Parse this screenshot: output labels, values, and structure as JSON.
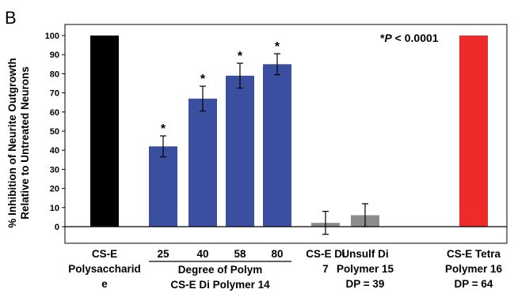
{
  "panel_label": "B",
  "chart_data": {
    "type": "bar",
    "ylabel_lines": [
      "% Inhibition of Neurite Outgrowth",
      "Relative to Untreated Neurons"
    ],
    "ylim": [
      -10,
      100
    ],
    "yticks": [
      0,
      10,
      20,
      30,
      40,
      50,
      60,
      70,
      80,
      90,
      100
    ],
    "annotation_prefix": "*",
    "annotation_p": "P",
    "annotation_rest": " < 0.0001",
    "bars": [
      {
        "value": 100,
        "error": 0,
        "color": "#000000",
        "star": false
      },
      {
        "value": 42,
        "error": 5.5,
        "color": "#3a4fa0",
        "star": true
      },
      {
        "value": 67,
        "error": 6.5,
        "color": "#3a4fa0",
        "star": true
      },
      {
        "value": 79,
        "error": 6.5,
        "color": "#3a4fa0",
        "star": true
      },
      {
        "value": 85,
        "error": 5.5,
        "color": "#3a4fa0",
        "star": true
      },
      {
        "value": 2,
        "error": 6,
        "color": "#8c8c8c",
        "star": false
      },
      {
        "value": 6,
        "error": 6,
        "color": "#8c8c8c",
        "star": false
      },
      {
        "value": 100,
        "error": 0,
        "color": "#ee2a2a",
        "star": false
      }
    ],
    "star_label": "*",
    "group_labels": [
      {
        "bar": 0,
        "lines": [
          "CS-E",
          "Polysaccharid",
          "e"
        ]
      },
      {
        "bar": 5,
        "lines": [
          "CS-E Di",
          "7"
        ]
      },
      {
        "bar": 6,
        "lines": [
          "Unsulf Di",
          "Polymer 15",
          "DP = 39"
        ]
      },
      {
        "bar": 7,
        "lines": [
          "CS-E Tetra",
          "Polymer 16",
          "DP = 64"
        ]
      }
    ],
    "dp_group": {
      "bars": [
        1,
        2,
        3,
        4
      ],
      "tick_labels": [
        "25",
        "40",
        "58",
        "80"
      ],
      "title_lines": [
        "Degree of Polym",
        "CS-E Di Polymer 14"
      ]
    }
  }
}
